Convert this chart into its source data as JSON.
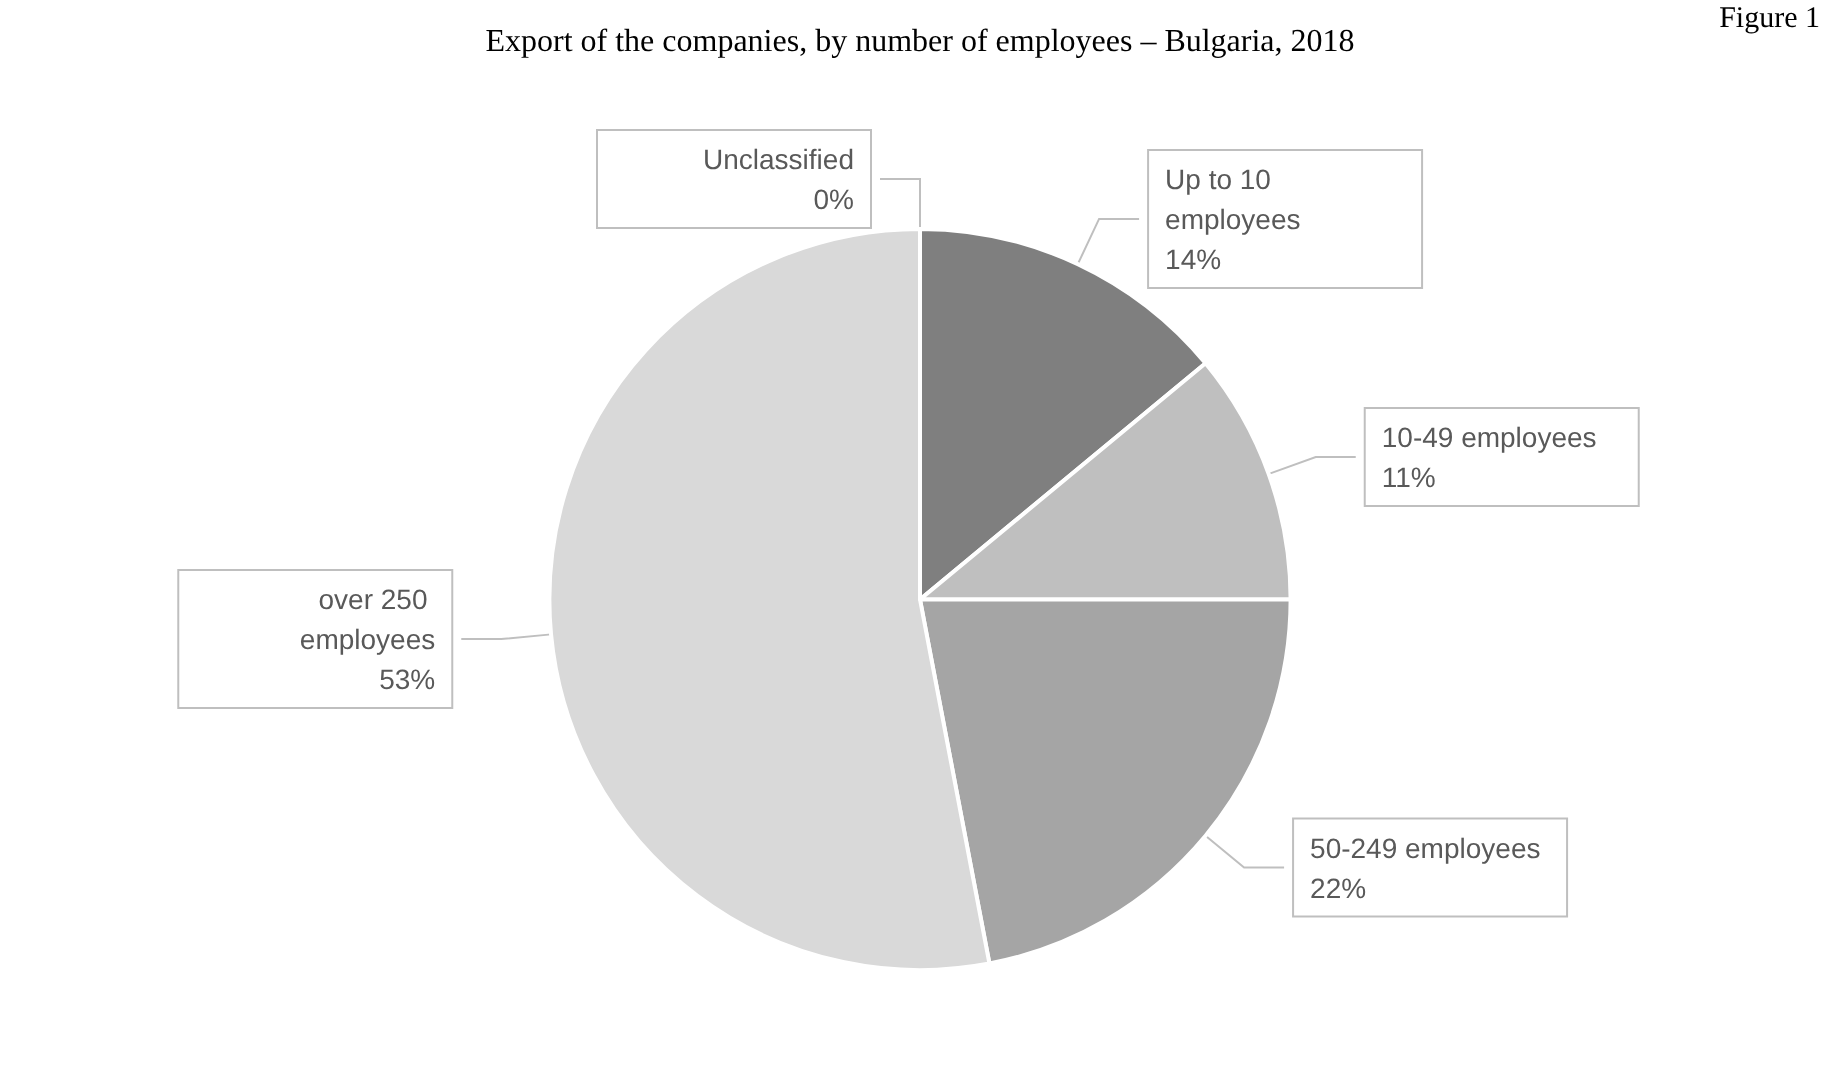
{
  "chart_data": {
    "type": "pie",
    "title": "Export of the companies, by number of employees – Bulgaria, 2018",
    "annotations": [
      "Figure 1"
    ],
    "categories": [
      "Up to 10 employees",
      "10-49 employees",
      "50-249 employees",
      "over 250 employees",
      "Unclassified"
    ],
    "values": [
      14,
      11,
      22,
      53,
      0
    ],
    "colors": [
      "#7f7f7f",
      "#bfbfbf",
      "#a5a5a5",
      "#d9d9d9",
      "#ffffff"
    ],
    "value_labels": [
      "14%",
      "11%",
      "22%",
      "53%",
      "0%"
    ],
    "legend": false
  }
}
